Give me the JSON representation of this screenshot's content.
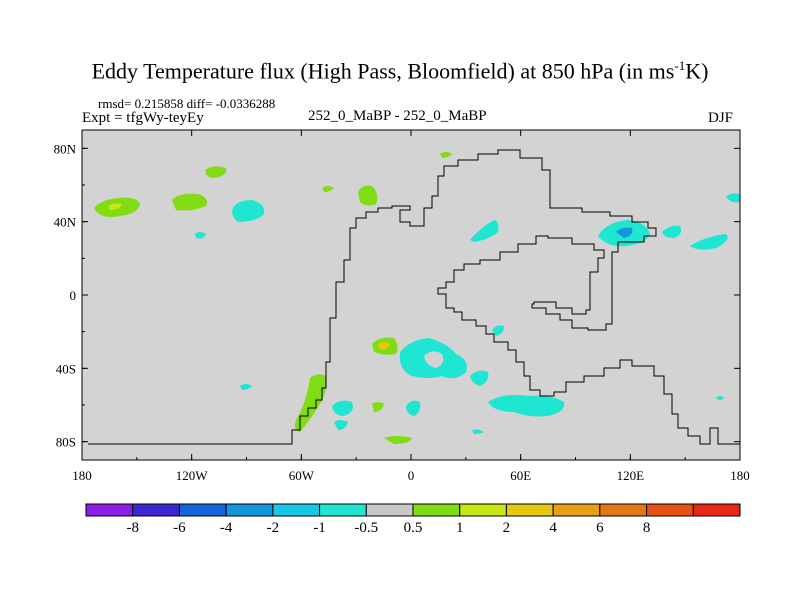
{
  "title": {
    "main": "Eddy Temperature flux (High Pass, Bloomfield) at 850 hPa (in ms",
    "sup": "-1",
    "tail": "K)"
  },
  "stats": {
    "rmsd_diff": "rmsd= 0.215858 diff= -0.0336288",
    "expt": "Expt = tfgWy-teyEy"
  },
  "center_label": "252_0_MaBP - 252_0_MaBP",
  "season": "DJF",
  "lat_ticks": [
    {
      "label": "80N",
      "value": 80
    },
    {
      "label": "40N",
      "value": 40
    },
    {
      "label": "0",
      "value": 0
    },
    {
      "label": "40S",
      "value": -40
    },
    {
      "label": "80S",
      "value": -80
    }
  ],
  "lon_ticks": [
    {
      "label": "180",
      "value": -180
    },
    {
      "label": "120W",
      "value": -120
    },
    {
      "label": "60W",
      "value": -60
    },
    {
      "label": "0",
      "value": 0
    },
    {
      "label": "60E",
      "value": 60
    },
    {
      "label": "120E",
      "value": 120
    },
    {
      "label": "180",
      "value": 180
    }
  ],
  "colorbar": {
    "colors": [
      "#8a1ee6",
      "#3c28d2",
      "#1464dc",
      "#1496dc",
      "#14c8e6",
      "#1ee6d2",
      "#c8c8c8",
      "#82dc14",
      "#c8e614",
      "#e6c814",
      "#e6a014",
      "#e67814",
      "#e65014",
      "#e62814"
    ],
    "labels": [
      "-8",
      "-6",
      "-4",
      "-2",
      "-1",
      "-0.5",
      "0.5",
      "1",
      "2",
      "4",
      "6",
      "8"
    ]
  },
  "map_colors": {
    "background": "#d3d3d3",
    "cyan": "#1ee6d2",
    "blue": "#1496dc",
    "green": "#82dc14",
    "yellow": "#c8e614",
    "orange": "#e6a014"
  }
}
